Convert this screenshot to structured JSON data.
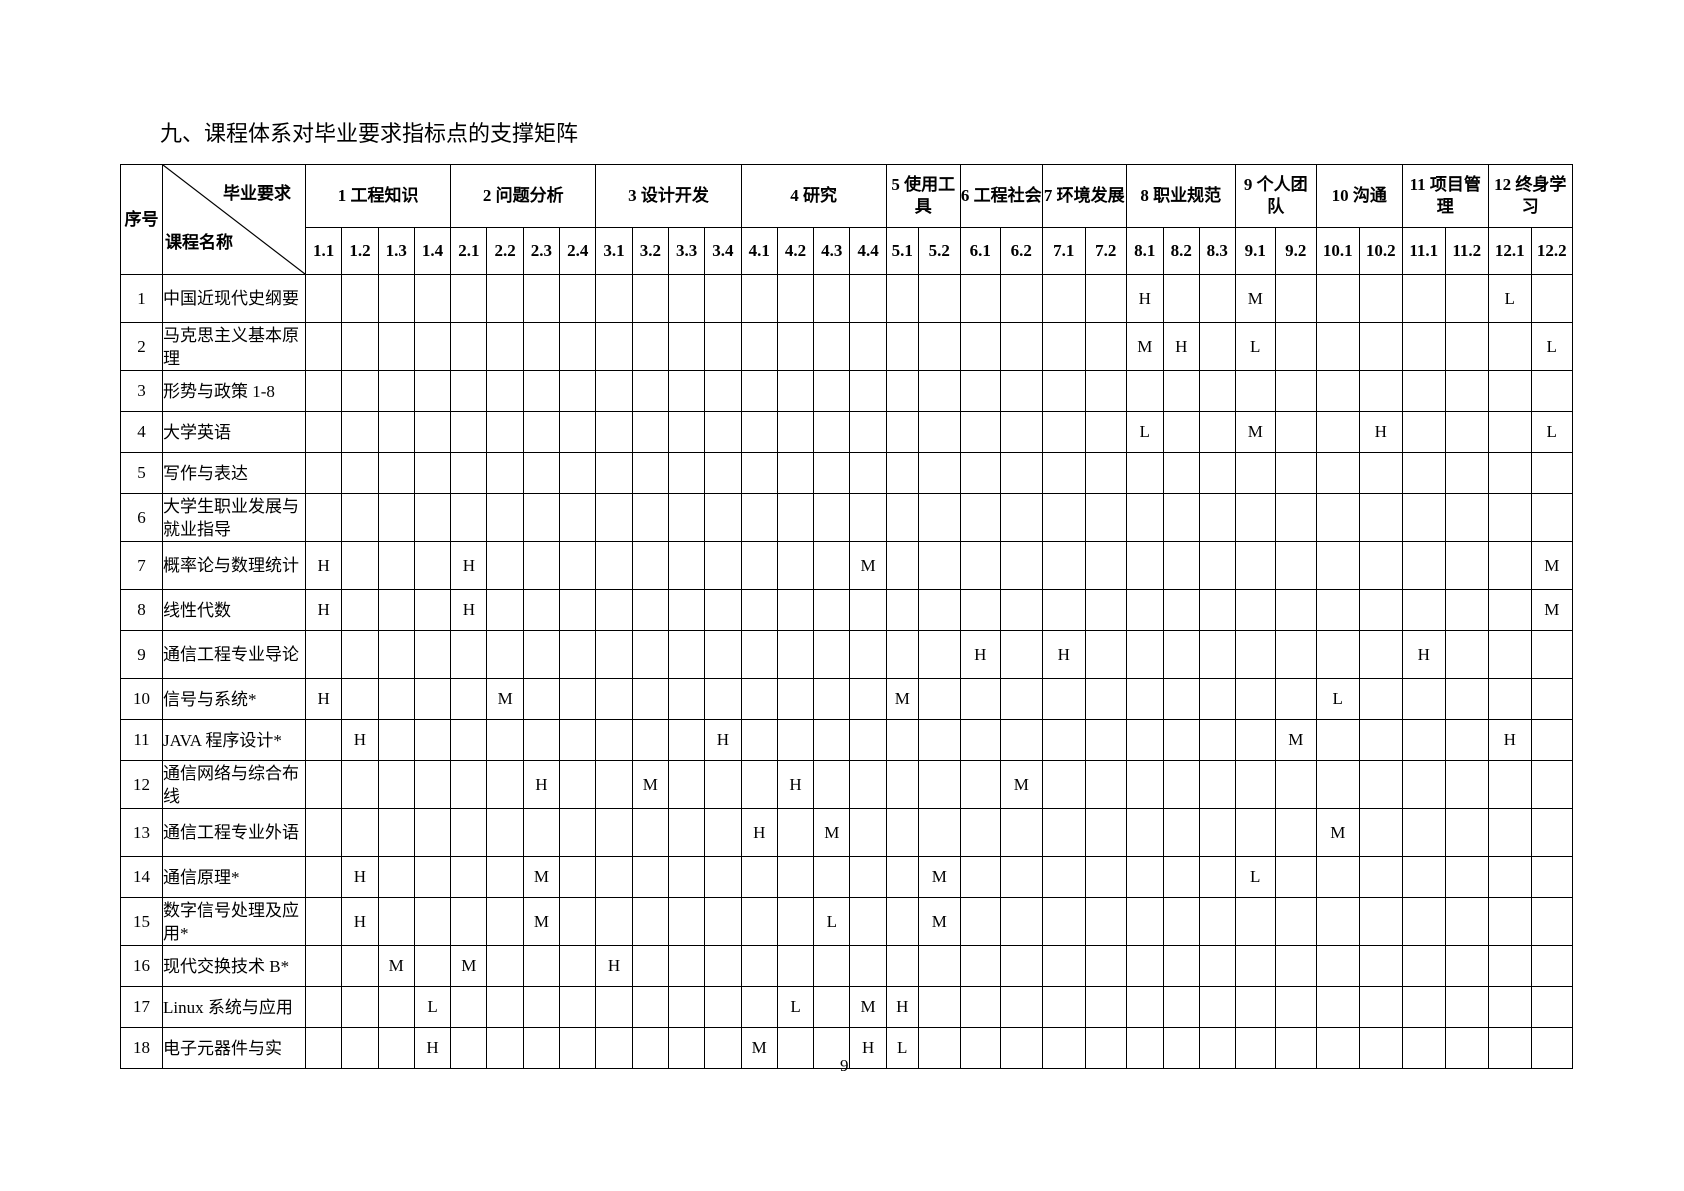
{
  "title": "九、课程体系对毕业要求指标点的支撑矩阵",
  "header": {
    "seq": "序号",
    "requirement": "毕业要求",
    "course_name": "课程名称",
    "groups": [
      {
        "label": "1 工程知识",
        "subs": [
          "1.1",
          "1.2",
          "1.3",
          "1.4"
        ]
      },
      {
        "label": "2 问题分析",
        "subs": [
          "2.1",
          "2.2",
          "2.3",
          "2.4"
        ]
      },
      {
        "label": "3 设计开发",
        "subs": [
          "3.1",
          "3.2",
          "3.3",
          "3.4"
        ]
      },
      {
        "label": "4 研究",
        "subs": [
          "4.1",
          "4.2",
          "4.3",
          "4.4"
        ]
      },
      {
        "label": "5 使用工具",
        "subs": [
          "5.1",
          "5.2"
        ]
      },
      {
        "label": "6 工程社会",
        "subs": [
          "6.1",
          "6.2"
        ]
      },
      {
        "label": "7 环境发展",
        "subs": [
          "7.1",
          "7.2"
        ]
      },
      {
        "label": "8 职业规范",
        "subs": [
          "8.1",
          "8.2",
          "8.3"
        ]
      },
      {
        "label": "9 个人团队",
        "subs": [
          "9.1",
          "9.2"
        ]
      },
      {
        "label": "10 沟通",
        "subs": [
          "10.1",
          "10.2"
        ]
      },
      {
        "label": "11 项目管理",
        "subs": [
          "11.1",
          "11.2"
        ]
      },
      {
        "label": "12 终身学习",
        "subs": [
          "12.1",
          "12.2"
        ]
      }
    ]
  },
  "rows": [
    {
      "seq": "1",
      "name": "中国近现代史纲要",
      "cells": {
        "8.1": "H",
        "9.1": "M",
        "12.1": "L"
      }
    },
    {
      "seq": "2",
      "name": "马克思主义基本原理",
      "cells": {
        "8.1": "M",
        "8.2": "H",
        "9.1": "L",
        "12.2": "L"
      }
    },
    {
      "seq": "3",
      "name": "形势与政策 1-8",
      "cells": {}
    },
    {
      "seq": "4",
      "name": "大学英语",
      "cells": {
        "8.1": "L",
        "9.1": "M",
        "10.2": "H",
        "12.2": "L"
      }
    },
    {
      "seq": "5",
      "name": "写作与表达",
      "cells": {}
    },
    {
      "seq": "6",
      "name": "大学生职业发展与就业指导",
      "cells": {}
    },
    {
      "seq": "7",
      "name": "概率论与数理统计",
      "cells": {
        "1.1": "H",
        "2.1": "H",
        "4.4": "M",
        "12.2": "M"
      }
    },
    {
      "seq": "8",
      "name": "线性代数",
      "cells": {
        "1.1": "H",
        "2.1": "H",
        "12.2": "M"
      }
    },
    {
      "seq": "9",
      "name": "通信工程专业导论",
      "cells": {
        "6.1": "H",
        "7.1": "H",
        "11.1": "H"
      }
    },
    {
      "seq": "10",
      "name": "信号与系统*",
      "cells": {
        "1.1": "H",
        "2.2": "M",
        "5.1": "M",
        "10.1": "L"
      }
    },
    {
      "seq": "11",
      "name": "JAVA 程序设计*",
      "cells": {
        "1.2": "H",
        "3.4": "H",
        "9.2": "M",
        "12.1": "H"
      }
    },
    {
      "seq": "12",
      "name": "通信网络与综合布线",
      "cells": {
        "2.3": "H",
        "3.2": "M",
        "4.2": "H",
        "6.2": "M"
      }
    },
    {
      "seq": "13",
      "name": "通信工程专业外语",
      "cells": {
        "4.1": "H",
        "4.3": "M",
        "10.1": "M"
      }
    },
    {
      "seq": "14",
      "name": "通信原理*",
      "cells": {
        "1.2": "H",
        "2.3": "M",
        "5.2": "M",
        "9.1": "L"
      }
    },
    {
      "seq": "15",
      "name": "数字信号处理及应用*",
      "cells": {
        "1.2": "H",
        "2.3": "M",
        "4.3": "L",
        "5.2": "M"
      }
    },
    {
      "seq": "16",
      "name": "现代交换技术 B*",
      "cells": {
        "1.3": "M",
        "2.1": "M",
        "3.1": "H"
      }
    },
    {
      "seq": "17",
      "name": "Linux 系统与应用",
      "cells": {
        "1.4": "L",
        "4.2": "L",
        "4.4": "M",
        "5.1": "H"
      }
    },
    {
      "seq": "18",
      "name": "电子元器件与实",
      "cells": {
        "1.4": "H",
        "4.1": "M",
        "4.4": "H",
        "5.1": "L"
      }
    }
  ],
  "page_number": "9"
}
